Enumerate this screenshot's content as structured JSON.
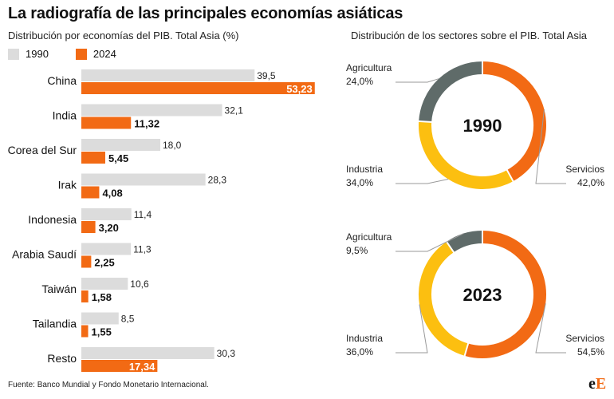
{
  "header": {
    "title": "La radiografía de las principales economías asiáticas",
    "subtitle_left": "Distribución por economías del PIB. Total Asia (%)",
    "subtitle_right": "Distribución de los sectores sobre el PIB. Total Asia"
  },
  "legend": [
    {
      "label": "1990",
      "color": "#dcdcdc"
    },
    {
      "label": "2024",
      "color": "#f26a14"
    }
  ],
  "chart_data": [
    {
      "type": "bar",
      "orientation": "horizontal",
      "categories": [
        "China",
        "India",
        "Corea del Sur",
        "Irak",
        "Indonesia",
        "Arabia Saudí",
        "Taiwán",
        "Tailandia",
        "Resto"
      ],
      "series": [
        {
          "name": "1990",
          "color": "#dcdcdc",
          "values": [
            39.5,
            32.1,
            18.0,
            28.3,
            11.4,
            11.3,
            10.6,
            8.5,
            30.3
          ],
          "labels": [
            "39,5",
            "32,1",
            "18,0",
            "28,3",
            "11,4",
            "11,3",
            "10,6",
            "8,5",
            "30,3"
          ]
        },
        {
          "name": "2024",
          "color": "#f26a14",
          "values": [
            53.23,
            11.32,
            5.45,
            4.08,
            3.2,
            2.25,
            1.58,
            1.55,
            17.34
          ],
          "labels": [
            "53,23",
            "11,32",
            "5,45",
            "4,08",
            "3,20",
            "2,25",
            "1,58",
            "1,55",
            "17,34"
          ]
        }
      ],
      "title": "Distribución por economías del PIB. Total Asia (%)"
    },
    {
      "type": "pie",
      "variant": "donut",
      "center_label": "1990",
      "slices": [
        {
          "name": "Servicios",
          "value": 42.0,
          "label": "42,0%",
          "color": "#f26a14"
        },
        {
          "name": "Industria",
          "value": 34.0,
          "label": "34,0%",
          "color": "#fcbf10"
        },
        {
          "name": "Agricultura",
          "value": 24.0,
          "label": "24,0%",
          "color": "#5f6b69"
        }
      ]
    },
    {
      "type": "pie",
      "variant": "donut",
      "center_label": "2023",
      "slices": [
        {
          "name": "Servicios",
          "value": 54.5,
          "label": "54,5%",
          "color": "#f26a14"
        },
        {
          "name": "Industria",
          "value": 36.0,
          "label": "36,0%",
          "color": "#fcbf10"
        },
        {
          "name": "Agricultura",
          "value": 9.5,
          "label": "9,5%",
          "color": "#5f6b69"
        }
      ]
    }
  ],
  "footer": {
    "source": "Fuente: Banco Mundial y Fondo Monetario Internacional.",
    "logo_a": "e",
    "logo_b": "E"
  }
}
